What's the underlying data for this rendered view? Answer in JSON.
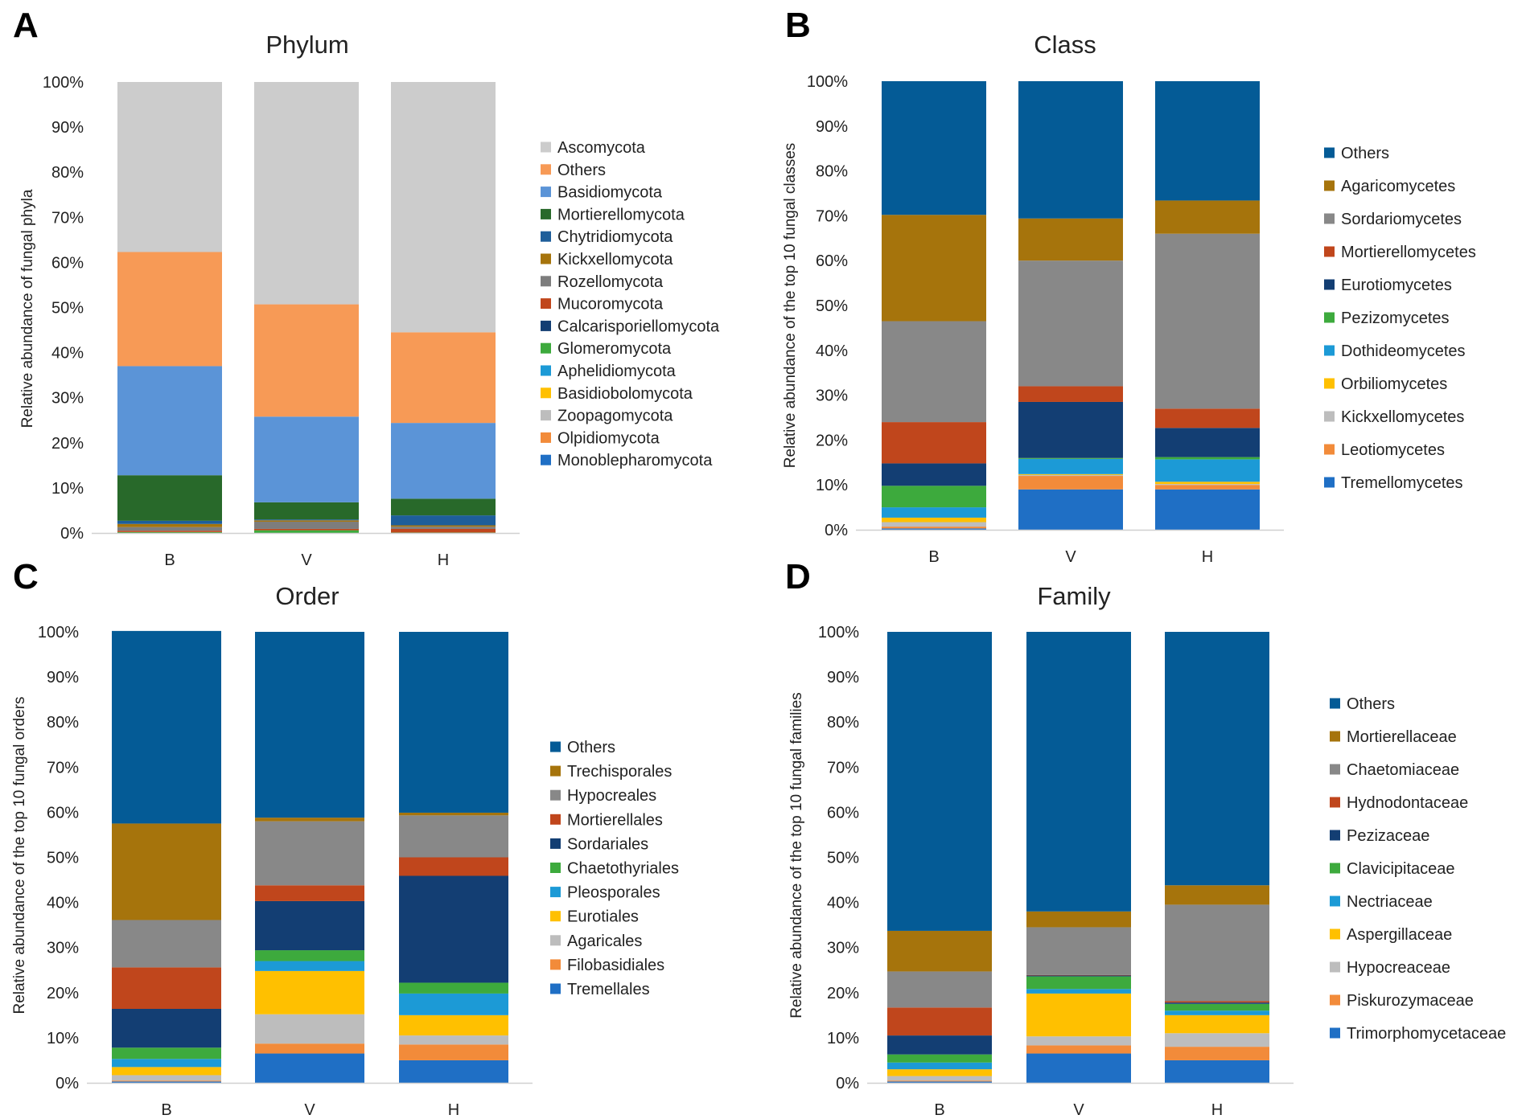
{
  "chart_data": [
    {
      "type": "bar",
      "stacked": true,
      "panel": "A",
      "title": "Phylum",
      "ylabel": "Relative abundance of fungal phyla",
      "xlabel": "",
      "ylim": [
        0,
        100
      ],
      "ytick_labels": [
        "0%",
        "10%",
        "20%",
        "30%",
        "40%",
        "50%",
        "60%",
        "70%",
        "80%",
        "90%",
        "100%"
      ],
      "categories": [
        "B",
        "V",
        "H"
      ],
      "series": [
        {
          "name": "Monoblepharomycota",
          "color": "#1f6fc5",
          "values": [
            0,
            0,
            0
          ]
        },
        {
          "name": "Olpidiomycota",
          "color": "#f28b3a",
          "values": [
            0,
            0,
            0
          ]
        },
        {
          "name": "Zoopagomycota",
          "color": "#bdbdbd",
          "values": [
            0,
            0,
            0
          ]
        },
        {
          "name": "Basidiobolomycota",
          "color": "#ffc000",
          "values": [
            0,
            0,
            0
          ]
        },
        {
          "name": "Aphelidiomycota",
          "color": "#1c9ad6",
          "values": [
            0,
            0,
            0
          ]
        },
        {
          "name": "Glomeromycota",
          "color": "#3daa3d",
          "values": [
            0.2,
            0.6,
            0.1
          ]
        },
        {
          "name": "Calcarisporiellomycota",
          "color": "#133e73",
          "values": [
            0,
            0,
            0
          ]
        },
        {
          "name": "Mucoromycota",
          "color": "#c0461c",
          "values": [
            0.3,
            0.3,
            0.8
          ]
        },
        {
          "name": "Rozellomycota",
          "color": "#7d7d7d",
          "values": [
            0.8,
            1.6,
            0.5
          ]
        },
        {
          "name": "Kickxellomycota",
          "color": "#a6740c",
          "values": [
            0.7,
            0.3,
            0.3
          ]
        },
        {
          "name": "Chytridiomycota",
          "color": "#1e5e9a",
          "values": [
            0.7,
            0.2,
            2.2
          ]
        },
        {
          "name": "Mortierellomycota",
          "color": "#28692a",
          "values": [
            10.1,
            3.8,
            3.7
          ]
        },
        {
          "name": "Basidiomycota",
          "color": "#5b94d7",
          "values": [
            24.2,
            19.0,
            16.8
          ]
        },
        {
          "name": "Others",
          "color": "#f79a56",
          "values": [
            25.3,
            24.9,
            20.1
          ]
        },
        {
          "name": "Ascomycota",
          "color": "#cccccc",
          "values": [
            37.7,
            49.3,
            55.5
          ]
        }
      ]
    },
    {
      "type": "bar",
      "stacked": true,
      "panel": "B",
      "title": "Class",
      "ylabel": "Relative abundance of the top 10 fungal classes",
      "xlabel": "",
      "ylim": [
        0,
        100
      ],
      "ytick_labels": [
        "0%",
        "10%",
        "20%",
        "30%",
        "40%",
        "50%",
        "60%",
        "70%",
        "80%",
        "90%",
        "100%"
      ],
      "categories": [
        "B",
        "V",
        "H"
      ],
      "series": [
        {
          "name": "Tremellomycetes",
          "color": "#1f6fc5",
          "values": [
            0.3,
            9.0,
            9.0
          ]
        },
        {
          "name": "Leotiomycetes",
          "color": "#f28b3a",
          "values": [
            0.4,
            3.0,
            1.0
          ]
        },
        {
          "name": "Kickxellomycetes",
          "color": "#bdbdbd",
          "values": [
            1.0,
            0.2,
            0.2
          ]
        },
        {
          "name": "Orbiliomycetes",
          "color": "#ffc000",
          "values": [
            1.0,
            0.2,
            0.5
          ]
        },
        {
          "name": "Dothideomycetes",
          "color": "#1c9ad6",
          "values": [
            2.3,
            3.4,
            5.0
          ]
        },
        {
          "name": "Pezizomycetes",
          "color": "#3daa3d",
          "values": [
            4.8,
            0.2,
            0.5
          ]
        },
        {
          "name": "Eurotiomycetes",
          "color": "#133e73",
          "values": [
            5.0,
            12.5,
            6.5
          ]
        },
        {
          "name": "Mortierellomycetes",
          "color": "#c0461c",
          "values": [
            9.2,
            3.5,
            4.3
          ]
        },
        {
          "name": "Sordariomycetes",
          "color": "#888888",
          "values": [
            22.5,
            28.0,
            39.0
          ]
        },
        {
          "name": "Agaricomycetes",
          "color": "#a6740c",
          "values": [
            23.7,
            9.4,
            7.4
          ]
        },
        {
          "name": "Others",
          "color": "#045b96",
          "values": [
            29.8,
            30.6,
            26.6
          ]
        }
      ]
    },
    {
      "type": "bar",
      "stacked": true,
      "panel": "C",
      "title": "Order",
      "ylabel": "Relative abundance of the top 10 fungal orders",
      "xlabel": "",
      "ylim": [
        0,
        100
      ],
      "ytick_labels": [
        "0%",
        "10%",
        "20%",
        "30%",
        "40%",
        "50%",
        "60%",
        "70%",
        "80%",
        "90%",
        "100%"
      ],
      "categories": [
        "B",
        "V",
        "H"
      ],
      "series": [
        {
          "name": "Tremellales",
          "color": "#1f6fc5",
          "values": [
            0.3,
            6.5,
            5.0
          ]
        },
        {
          "name": "Filobasidiales",
          "color": "#f28b3a",
          "values": [
            0.2,
            2.2,
            3.5
          ]
        },
        {
          "name": "Agaricales",
          "color": "#bdbdbd",
          "values": [
            1.2,
            6.5,
            2.0
          ]
        },
        {
          "name": "Eurotiales",
          "color": "#ffc000",
          "values": [
            1.8,
            9.6,
            4.5
          ]
        },
        {
          "name": "Pleosporales",
          "color": "#1c9ad6",
          "values": [
            1.8,
            2.2,
            4.8
          ]
        },
        {
          "name": "Chaetothyriales",
          "color": "#3daa3d",
          "values": [
            2.5,
            2.4,
            2.4
          ]
        },
        {
          "name": "Sordariales",
          "color": "#133e73",
          "values": [
            8.6,
            10.9,
            23.7
          ]
        },
        {
          "name": "Mortierellales",
          "color": "#c0461c",
          "values": [
            9.2,
            3.5,
            4.1
          ]
        },
        {
          "name": "Hypocreales",
          "color": "#888888",
          "values": [
            10.5,
            14.2,
            9.3
          ]
        },
        {
          "name": "Trechisporales",
          "color": "#a6740c",
          "values": [
            21.4,
            0.8,
            0.6
          ]
        },
        {
          "name": "Others",
          "color": "#045b96",
          "values": [
            42.7,
            41.2,
            40.1
          ]
        }
      ]
    },
    {
      "type": "bar",
      "stacked": true,
      "panel": "D",
      "title": "Family",
      "ylabel": "Relative abundance of the top 10 fungal families",
      "xlabel": "",
      "ylim": [
        0,
        100
      ],
      "ytick_labels": [
        "0%",
        "10%",
        "20%",
        "30%",
        "40%",
        "50%",
        "60%",
        "70%",
        "80%",
        "90%",
        "100%"
      ],
      "categories": [
        "B",
        "V",
        "H"
      ],
      "series": [
        {
          "name": "Trimorphomycetaceae",
          "color": "#1f6fc5",
          "values": [
            0.3,
            6.5,
            5.0
          ]
        },
        {
          "name": "Piskurozymaceae",
          "color": "#f28b3a",
          "values": [
            0.2,
            1.8,
            3.0
          ]
        },
        {
          "name": "Hypocreaceae",
          "color": "#bdbdbd",
          "values": [
            1.0,
            2.0,
            3.0
          ]
        },
        {
          "name": "Aspergillaceae",
          "color": "#ffc000",
          "values": [
            1.5,
            9.5,
            4.0
          ]
        },
        {
          "name": "Nectriaceae",
          "color": "#1c9ad6",
          "values": [
            1.5,
            1.0,
            1.0
          ]
        },
        {
          "name": "Clavicipitaceae",
          "color": "#3daa3d",
          "values": [
            1.8,
            2.8,
            1.5
          ]
        },
        {
          "name": "Pezizaceae",
          "color": "#133e73",
          "values": [
            4.2,
            0.2,
            0.3
          ]
        },
        {
          "name": "Hydnodontaceae",
          "color": "#c0461c",
          "values": [
            6.2,
            0.1,
            0.3
          ]
        },
        {
          "name": "Chaetomiaceae",
          "color": "#888888",
          "values": [
            8.0,
            10.6,
            21.4
          ]
        },
        {
          "name": "Mortierellaceae",
          "color": "#a6740c",
          "values": [
            9.0,
            3.5,
            4.3
          ]
        },
        {
          "name": "Others",
          "color": "#045b96",
          "values": [
            66.3,
            62.0,
            56.2
          ]
        }
      ]
    }
  ]
}
